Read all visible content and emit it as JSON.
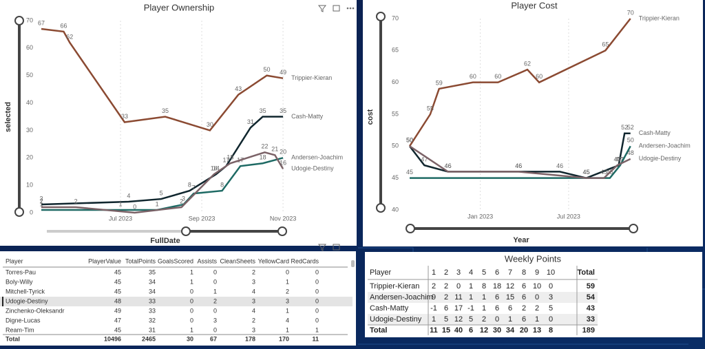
{
  "chart_data": [
    {
      "type": "line",
      "title": "Player Ownership",
      "x_label": "FullDate",
      "y_label": "selected",
      "xlim": [
        5.05,
        11.1
      ],
      "xticks": [
        {
          "value": 7,
          "label": "Jul 2023"
        },
        {
          "value": 9,
          "label": "Sep 2023"
        },
        {
          "value": 11,
          "label": "Nov 2023"
        }
      ],
      "ylim": [
        0,
        70
      ],
      "yticks": [
        0,
        10,
        20,
        30,
        40,
        50,
        60,
        70
      ],
      "grid": true,
      "data_labels": true,
      "series": [
        {
          "name": "Trippier-Kieran",
          "color": "#8b4a32",
          "x": [
            5.05,
            5.6,
            5.75,
            7.1,
            8.1,
            9.2,
            9.9,
            10.6,
            11.0
          ],
          "values": [
            67,
            66,
            62,
            33,
            35,
            30,
            43,
            50,
            49
          ]
        },
        {
          "name": "Cash-Matty",
          "color": "#10262e",
          "x": [
            5.05,
            7.2,
            8.0,
            8.7,
            9.35,
            9.6,
            10.2,
            10.5,
            11.0
          ],
          "values": [
            3,
            4,
            5,
            8,
            14,
            17,
            31,
            35,
            35
          ]
        },
        {
          "name": "Andersen-Joachim",
          "color": "#1e6a64",
          "x": [
            5.05,
            7.0,
            7.9,
            8.55,
            8.8,
            9.5,
            9.95,
            10.5,
            11.0
          ],
          "values": [
            1,
            1,
            1,
            3,
            7,
            8,
            17,
            18,
            20
          ]
        },
        {
          "name": "Udogie-Destiny",
          "color": "#7b6267",
          "x": [
            5.05,
            5.9,
            7.35,
            8.5,
            9.3,
            9.7,
            10.55,
            10.8,
            11.0
          ],
          "values": [
            2,
            2,
            0,
            2,
            14,
            18,
            22,
            21,
            16
          ]
        }
      ]
    },
    {
      "type": "line",
      "title": "Player Cost",
      "x_label": "Year",
      "y_label": "cost",
      "xlim": [
        -3.8,
        11.4
      ],
      "xticks": [
        {
          "value": 1,
          "label": "Jan 2023"
        },
        {
          "value": 7,
          "label": "Jul 2023"
        }
      ],
      "ylim": [
        40,
        70
      ],
      "yticks": [
        40,
        45,
        50,
        55,
        60,
        65,
        70
      ],
      "grid": true,
      "data_labels": true,
      "series": [
        {
          "name": "Trippier-Kieran",
          "color": "#8b4a32",
          "x": [
            -3.8,
            -2.4,
            -1.8,
            0.5,
            2.2,
            4.2,
            5.0,
            9.5,
            11.2
          ],
          "values": [
            50,
            55,
            59,
            60,
            60,
            62,
            60,
            65,
            70
          ]
        },
        {
          "name": "Cash-Matty",
          "color": "#10262e",
          "x": [
            -3.8,
            -2.8,
            -1.2,
            3.6,
            6.4,
            8.2,
            10.4,
            10.8,
            11.2
          ],
          "values": [
            50,
            47,
            46,
            46,
            46,
            45,
            47,
            52,
            52
          ]
        },
        {
          "name": "Andersen-Joachim",
          "color": "#1e6a64",
          "x": [
            -3.8,
            8.2,
            9.8,
            10.5,
            11.2
          ],
          "values": [
            45,
            45,
            45,
            47,
            50
          ]
        },
        {
          "name": "Udogie-Destiny",
          "color": "#7b6267",
          "x": [
            -3.8,
            -1.2,
            3.6,
            8.2,
            9.4,
            10.3,
            11.2
          ],
          "values": [
            50,
            46,
            46,
            45,
            45,
            47,
            48
          ]
        }
      ]
    }
  ],
  "player_table": {
    "columns": [
      "Player",
      "PlayerValue",
      "TotalPoints",
      "GoalsScored",
      "Assists",
      "CleanSheets",
      "YellowCard",
      "RedCards"
    ],
    "rows": [
      [
        "Torres-Pau",
        45,
        35,
        1,
        0,
        2,
        0,
        0
      ],
      [
        "Boly-Willy",
        45,
        34,
        1,
        0,
        3,
        1,
        0
      ],
      [
        "Mitchell-Tyrick",
        45,
        34,
        0,
        1,
        4,
        2,
        0
      ],
      [
        "Udogie-Destiny",
        48,
        33,
        0,
        2,
        3,
        3,
        0
      ],
      [
        "Zinchenko-Oleksandr",
        49,
        33,
        0,
        0,
        4,
        1,
        0
      ],
      [
        "Digne-Lucas",
        47,
        32,
        0,
        3,
        2,
        4,
        0
      ],
      [
        "Ream-Tim",
        45,
        31,
        1,
        0,
        3,
        1,
        1
      ]
    ],
    "total": [
      "Total",
      10496,
      2465,
      30,
      67,
      178,
      170,
      11
    ]
  },
  "weekly_table": {
    "title": "Weekly Points",
    "columns": [
      "Player",
      "1",
      "2",
      "3",
      "4",
      "5",
      "6",
      "7",
      "8",
      "9",
      "10",
      "Total"
    ],
    "rows": [
      [
        "Trippier-Kieran",
        2,
        2,
        0,
        1,
        8,
        18,
        12,
        6,
        10,
        0,
        59
      ],
      [
        "Andersen-Joachim",
        9,
        2,
        11,
        1,
        1,
        6,
        15,
        6,
        0,
        3,
        54
      ],
      [
        "Cash-Matty",
        -1,
        6,
        17,
        -1,
        1,
        6,
        6,
        2,
        2,
        5,
        43
      ],
      [
        "Udogie-Destiny",
        1,
        5,
        12,
        5,
        2,
        0,
        1,
        6,
        1,
        0,
        33
      ]
    ],
    "total": [
      "Total",
      11,
      15,
      40,
      6,
      12,
      30,
      34,
      20,
      13,
      8,
      189
    ]
  }
}
